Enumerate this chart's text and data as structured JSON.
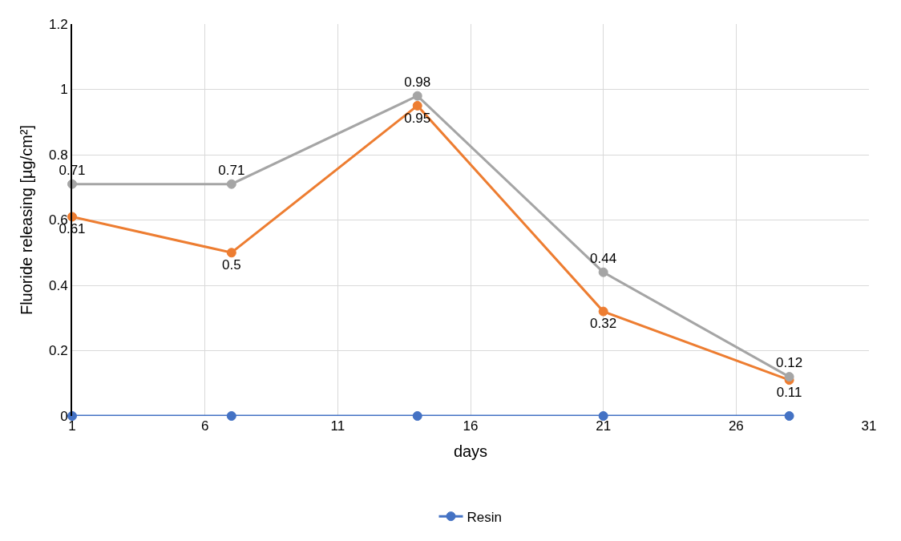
{
  "chart_data": {
    "type": "line",
    "xlabel": "days",
    "ylabel": "Fluoride releasing [µg/cm²]",
    "x": [
      1,
      7,
      14,
      21,
      28
    ],
    "series": [
      {
        "name": "Resin",
        "color": "#4472c4",
        "values": [
          0,
          0,
          0,
          0,
          0
        ]
      },
      {
        "color": "#ed7d31",
        "values": [
          0.61,
          0.5,
          0.95,
          0.32,
          0.11
        ],
        "value_labels": [
          "0.61",
          "0.5",
          "0.95",
          "0.32",
          "0.11"
        ]
      },
      {
        "color": "#a5a5a5",
        "values": [
          0.71,
          0.71,
          0.98,
          0.44,
          0.12
        ],
        "value_labels": [
          "0.71",
          "0.71",
          "0.98",
          "0.44",
          "0.12"
        ]
      }
    ],
    "xlim": [
      1,
      31
    ],
    "xticks": [
      1,
      6,
      11,
      16,
      21,
      26,
      31
    ],
    "ylim": [
      0,
      1.2
    ],
    "yticks": [
      0,
      0.2,
      0.4,
      0.6,
      0.8,
      1,
      1.2
    ],
    "grid": true,
    "legend": "bottom",
    "marker": "circle",
    "line_style": "solid"
  }
}
